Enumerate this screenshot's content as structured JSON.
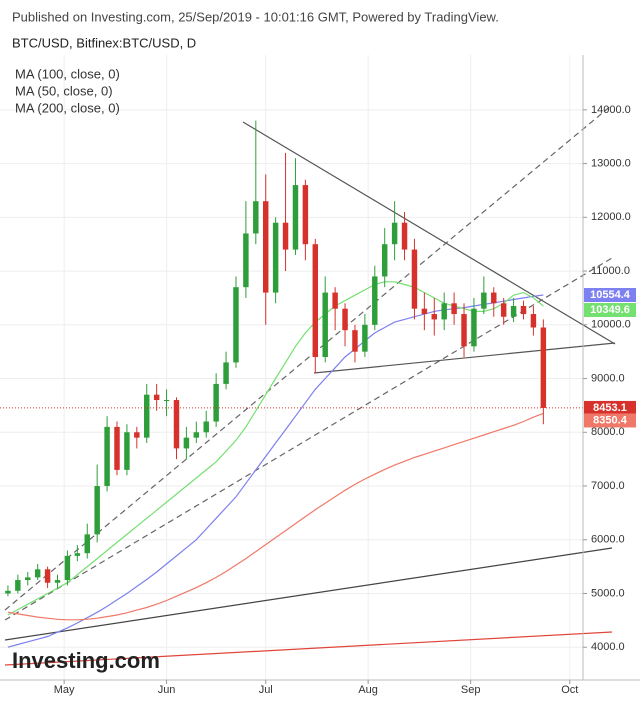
{
  "chart_data": {
    "type": "candlestick",
    "header": "Published on Investing.com, 25/Sep/2019 - 10:01:16 GMT, Powered by TradingView.",
    "title": "BTC/USD, Bitfinex:BTC/USD, D",
    "watermark": "Investing.com",
    "categories": [
      null,
      null,
      null,
      null,
      null,
      null,
      null,
      null,
      null,
      null,
      null,
      null,
      null,
      null,
      null,
      null,
      null,
      null,
      null,
      null,
      null,
      null,
      null,
      null,
      null,
      null,
      null,
      null,
      null,
      null,
      null,
      null,
      null,
      null,
      null,
      null,
      null,
      null,
      null,
      null,
      null,
      null,
      null,
      null,
      null,
      null,
      null,
      null,
      null,
      null,
      null,
      null,
      null,
      null,
      null
    ],
    "open": [
      5000,
      5050,
      5250,
      5300,
      5450,
      5200,
      5250,
      5700,
      5750,
      6100,
      7000,
      8100,
      7300,
      8000,
      7900,
      8700,
      8600,
      8600,
      7700,
      7900,
      8000,
      8200,
      8900,
      9300,
      10700,
      11700,
      12300,
      10600,
      11900,
      11400,
      12600,
      11500,
      9400,
      10600,
      10300,
      9900,
      9500,
      10000,
      10900,
      11500,
      11900,
      11400,
      10300,
      10200,
      10100,
      10400,
      10200,
      9600,
      10300,
      10600,
      10400,
      10150,
      10350,
      10200,
      9950
    ],
    "high": [
      5150,
      5350,
      5400,
      5550,
      5500,
      5350,
      5800,
      5900,
      6300,
      7400,
      8300,
      8200,
      8150,
      8100,
      8900,
      8900,
      8800,
      8650,
      8100,
      8200,
      8400,
      9100,
      9500,
      10900,
      12300,
      13800,
      12800,
      12000,
      13200,
      13100,
      12700,
      11600,
      10900,
      10700,
      10400,
      10000,
      10200,
      11100,
      11800,
      12300,
      12100,
      11600,
      10600,
      10500,
      10600,
      10600,
      10400,
      10500,
      10900,
      10700,
      10500,
      10500,
      10450,
      10350,
      10100
    ],
    "low": [
      4950,
      5000,
      5150,
      5250,
      5100,
      5100,
      5150,
      5600,
      5650,
      5950,
      6900,
      7200,
      7200,
      7700,
      7800,
      8400,
      8300,
      7500,
      7500,
      7800,
      7900,
      8100,
      8800,
      9200,
      10500,
      11500,
      10000,
      10400,
      11000,
      11300,
      11200,
      9100,
      9300,
      9900,
      9600,
      9300,
      9400,
      9900,
      10700,
      11200,
      11200,
      10100,
      9900,
      9800,
      9900,
      10000,
      9400,
      9500,
      10200,
      10150,
      10000,
      10050,
      10100,
      9800,
      8150
    ],
    "close": [
      5050,
      5250,
      5300,
      5450,
      5200,
      5250,
      5700,
      5750,
      6100,
      7000,
      8100,
      7300,
      8000,
      7900,
      8700,
      8600,
      8600,
      7700,
      7900,
      8000,
      8200,
      8900,
      9300,
      10700,
      11700,
      12300,
      10600,
      11900,
      11400,
      12600,
      11500,
      9400,
      10600,
      10300,
      9900,
      9500,
      10000,
      10900,
      11500,
      11900,
      11400,
      10300,
      10200,
      10100,
      10400,
      10200,
      9600,
      10300,
      10600,
      10400,
      10150,
      10350,
      10200,
      9950,
      8453.1
    ],
    "up_color": "#2e9e3a",
    "down_color": "#d6322b",
    "series": [
      {
        "name": "MA (100, close, 0)",
        "color": "#7d80f0",
        "values": [
          4000,
          4050,
          4100,
          4150,
          4200,
          4280,
          4360,
          4450,
          4550,
          4650,
          4760,
          4880,
          5000,
          5130,
          5260,
          5400,
          5550,
          5700,
          5850,
          6000,
          6200,
          6400,
          6600,
          6800,
          7050,
          7300,
          7550,
          7800,
          8050,
          8300,
          8550,
          8800,
          9000,
          9200,
          9400,
          9550,
          9700,
          9850,
          9950,
          10050,
          10100,
          10150,
          10200,
          10250,
          10280,
          10300,
          10320,
          10350,
          10380,
          10410,
          10440,
          10470,
          10500,
          10530,
          10554.4
        ]
      },
      {
        "name": "MA (50, close, 0)",
        "color": "#74e070",
        "values": [
          4600,
          4700,
          4800,
          4900,
          5000,
          5100,
          5200,
          5350,
          5500,
          5650,
          5800,
          5950,
          6100,
          6250,
          6400,
          6550,
          6700,
          6850,
          7000,
          7150,
          7300,
          7450,
          7650,
          7850,
          8100,
          8400,
          8700,
          9000,
          9300,
          9600,
          9850,
          10050,
          10200,
          10350,
          10450,
          10550,
          10650,
          10750,
          10800,
          10800,
          10750,
          10700,
          10600,
          10500,
          10400,
          10350,
          10300,
          10250,
          10250,
          10300,
          10400,
          10550,
          10600,
          10500,
          10349.6
        ]
      },
      {
        "name": "MA (200, close, 0)",
        "color": "#f07868",
        "values": [
          4650,
          4620,
          4590,
          4560,
          4540,
          4520,
          4510,
          4510,
          4520,
          4540,
          4570,
          4600,
          4640,
          4690,
          4740,
          4800,
          4870,
          4950,
          5030,
          5110,
          5200,
          5300,
          5410,
          5530,
          5650,
          5780,
          5910,
          6040,
          6170,
          6300,
          6430,
          6560,
          6680,
          6800,
          6920,
          7030,
          7130,
          7220,
          7310,
          7390,
          7460,
          7530,
          7590,
          7650,
          7710,
          7770,
          7830,
          7890,
          7950,
          8010,
          8070,
          8130,
          8200,
          8280,
          8350.4
        ]
      }
    ],
    "xlim": [
      -0.8,
      58
    ],
    "xticks": [
      {
        "value": 5.67,
        "label": "May"
      },
      {
        "value": 16,
        "label": "Jun"
      },
      {
        "value": 26,
        "label": "Jul"
      },
      {
        "value": 36.33,
        "label": "Aug"
      },
      {
        "value": 46.67,
        "label": "Sep"
      },
      {
        "value": 56.67,
        "label": "Oct"
      }
    ],
    "ylim": [
      3390,
      15300
    ],
    "yticks": [
      {
        "value": 4000,
        "label": "4000.0"
      },
      {
        "value": 5000,
        "label": "5000.0"
      },
      {
        "value": 6000,
        "label": "6000.0"
      },
      {
        "value": 7000,
        "label": "7000.0"
      },
      {
        "value": 8000,
        "label": "8000.0"
      },
      {
        "value": 9000,
        "label": "9000.0"
      },
      {
        "value": 10000,
        "label": "10000.0"
      },
      {
        "value": 11000,
        "label": "11000.0"
      },
      {
        "value": 12000,
        "label": "12000.0"
      },
      {
        "value": 13000,
        "label": "13000.0"
      },
      {
        "value": 14000,
        "label": "14000.0"
      }
    ],
    "grid": true
  }
}
